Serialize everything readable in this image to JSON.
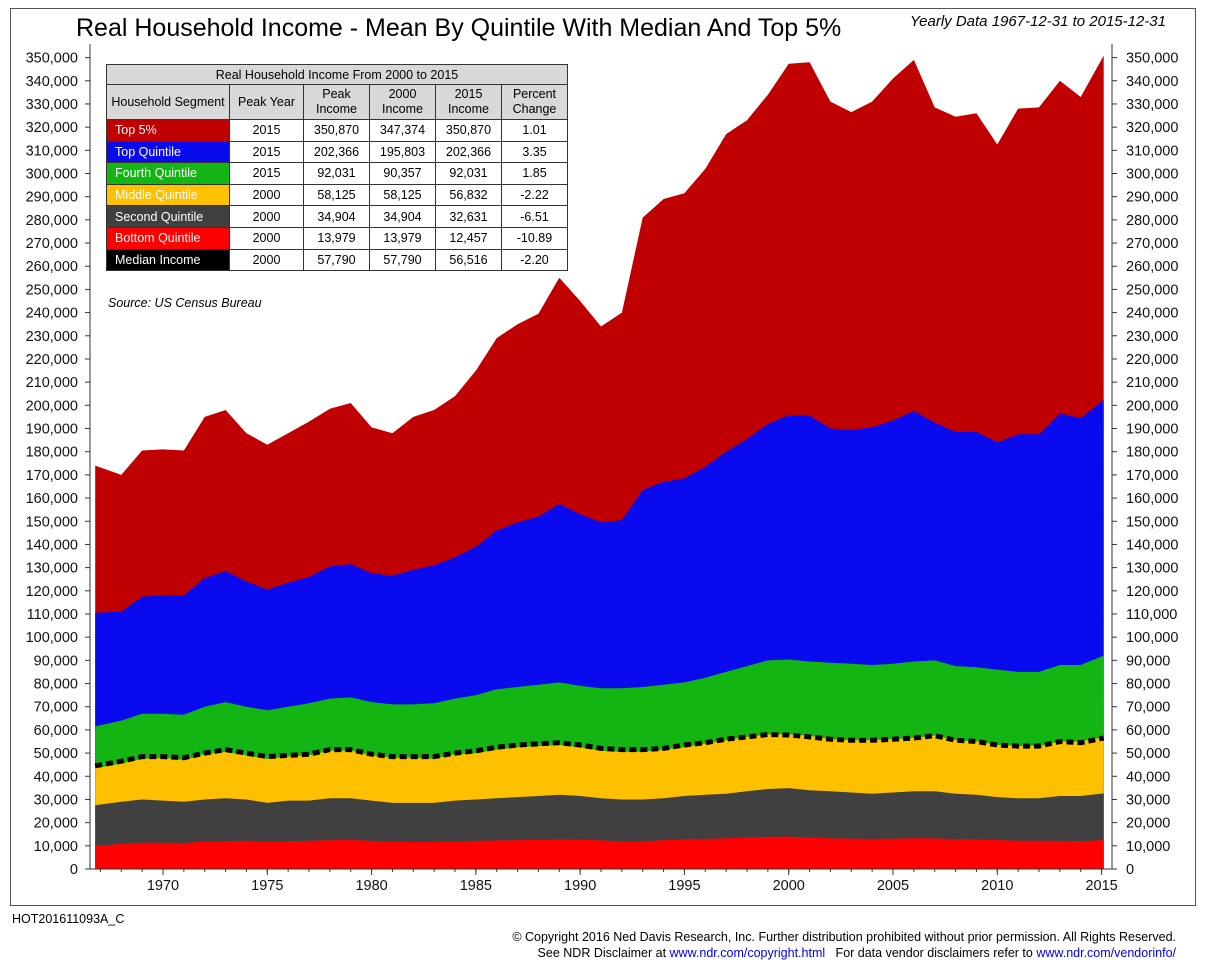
{
  "header": {
    "title": "Real Household Income - Mean By Quintile With Median And Top 5%",
    "subtitle": "Yearly Data 1967-12-31 to 2015-12-31"
  },
  "table": {
    "caption": "Real Household Income From 2000 to 2015",
    "headers": [
      "Household Segment",
      "Peak Year",
      "Peak Income",
      "2000 Income",
      "2015 Income",
      "Percent Change"
    ],
    "rows": [
      {
        "segment": "Top 5%",
        "color": "#c00000",
        "peak_year": "2015",
        "peak_income": "350,870",
        "income_2000": "347,374",
        "income_2015": "350,870",
        "pct_change": "1.01"
      },
      {
        "segment": "Top Quintile",
        "color": "#0a0aee",
        "peak_year": "2015",
        "peak_income": "202,366",
        "income_2000": "195,803",
        "income_2015": "202,366",
        "pct_change": "3.35"
      },
      {
        "segment": "Fourth Quintile",
        "color": "#12b512",
        "peak_year": "2015",
        "peak_income": "92,031",
        "income_2000": "90,357",
        "income_2015": "92,031",
        "pct_change": "1.85"
      },
      {
        "segment": "Middle Quintile",
        "color": "#ffc000",
        "peak_year": "2000",
        "peak_income": "58,125",
        "income_2000": "58,125",
        "income_2015": "56,832",
        "pct_change": "-2.22"
      },
      {
        "segment": "Second Quintile",
        "color": "#404040",
        "peak_year": "2000",
        "peak_income": "34,904",
        "income_2000": "34,904",
        "income_2015": "32,631",
        "pct_change": "-6.51"
      },
      {
        "segment": "Bottom Quintile",
        "color": "#ff0000",
        "peak_year": "2000",
        "peak_income": "13,979",
        "income_2000": "13,979",
        "income_2015": "12,457",
        "pct_change": "-10.89"
      },
      {
        "segment": "Median Income",
        "color": "#000000",
        "peak_year": "2000",
        "peak_income": "57,790",
        "income_2000": "57,790",
        "income_2015": "56,516",
        "pct_change": "-2.20"
      }
    ]
  },
  "source": "Source:  US Census Bureau",
  "footer": {
    "code": "HOT201611093A_C",
    "copyright_line1": "© Copyright 2016 Ned Davis Research, Inc. Further distribution prohibited without prior permission. All Rights Reserved.",
    "copyright_line2_a": "See NDR Disclaimer at ",
    "copyright_link1": "www.ndr.com/copyright.html",
    "copyright_line2_b": "   For data vendor disclaimers refer to ",
    "copyright_link2": "www.ndr.com/vendorinfo/"
  },
  "chart_data": {
    "type": "area",
    "x": [
      1967,
      1968,
      1969,
      1970,
      1971,
      1972,
      1973,
      1974,
      1975,
      1976,
      1977,
      1978,
      1979,
      1980,
      1981,
      1982,
      1983,
      1984,
      1985,
      1986,
      1987,
      1988,
      1989,
      1990,
      1991,
      1992,
      1993,
      1994,
      1995,
      1996,
      1997,
      1998,
      1999,
      2000,
      2001,
      2002,
      2003,
      2004,
      2005,
      2006,
      2007,
      2008,
      2009,
      2010,
      2011,
      2012,
      2013,
      2014,
      2015
    ],
    "xlim": [
      1966.5,
      2015.5
    ],
    "ylim": [
      0,
      355000
    ],
    "y_ticks": [
      0,
      10000,
      20000,
      30000,
      40000,
      50000,
      60000,
      70000,
      80000,
      90000,
      100000,
      110000,
      120000,
      130000,
      140000,
      150000,
      160000,
      170000,
      180000,
      190000,
      200000,
      210000,
      220000,
      230000,
      240000,
      250000,
      260000,
      270000,
      280000,
      290000,
      300000,
      310000,
      320000,
      330000,
      340000,
      350000
    ],
    "y_tick_labels": [
      "0",
      "10,000",
      "20,000",
      "30,000",
      "40,000",
      "50,000",
      "60,000",
      "70,000",
      "80,000",
      "90,000",
      "100,000",
      "110,000",
      "120,000",
      "130,000",
      "140,000",
      "150,000",
      "160,000",
      "170,000",
      "180,000",
      "190,000",
      "200,000",
      "210,000",
      "220,000",
      "230,000",
      "240,000",
      "250,000",
      "260,000",
      "270,000",
      "280,000",
      "290,000",
      "300,000",
      "310,000",
      "320,000",
      "330,000",
      "340,000",
      "350,000"
    ],
    "x_ticks": [
      1970,
      1975,
      1980,
      1985,
      1990,
      1995,
      2000,
      2005,
      2010,
      2015
    ],
    "x_tick_labels": [
      "1970",
      "1975",
      "1980",
      "1985",
      "1990",
      "1995",
      "2000",
      "2005",
      "2010",
      "2015"
    ],
    "series": [
      {
        "name": "Top 5%",
        "color": "#c00000",
        "values": [
          174000,
          170000,
          180500,
          181000,
          180500,
          195000,
          198000,
          188000,
          183000,
          188000,
          193000,
          198500,
          201000,
          190500,
          188000,
          195000,
          198000,
          204000,
          215000,
          229000,
          235000,
          239500,
          255000,
          245000,
          234000,
          240000,
          281000,
          289000,
          291500,
          302000,
          317000,
          323000,
          334000,
          347374,
          348000,
          331000,
          326500,
          331000,
          341000,
          349000,
          328500,
          324500,
          326000,
          312500,
          328000,
          328500,
          340000,
          333000,
          350870
        ]
      },
      {
        "name": "Top Quintile",
        "color": "#0a0aee",
        "values": [
          110500,
          111000,
          117500,
          118000,
          118000,
          125500,
          128500,
          124000,
          120500,
          123500,
          126000,
          130500,
          131500,
          127500,
          126500,
          129000,
          131000,
          134500,
          139000,
          146000,
          149500,
          152000,
          157500,
          153000,
          149500,
          150500,
          163500,
          167000,
          168500,
          173500,
          180000,
          185500,
          192000,
          195803,
          195500,
          190000,
          189500,
          190500,
          193500,
          197500,
          192500,
          188500,
          188500,
          184000,
          187500,
          187500,
          196500,
          194500,
          202366
        ]
      },
      {
        "name": "Fourth Quintile",
        "color": "#12b512",
        "values": [
          61500,
          64000,
          67000,
          67000,
          66500,
          70000,
          72000,
          70000,
          68500,
          70000,
          71500,
          73500,
          74000,
          72000,
          71000,
          71000,
          71500,
          73500,
          75000,
          77500,
          78500,
          79500,
          80500,
          79000,
          78000,
          78000,
          78500,
          79500,
          80500,
          82500,
          85000,
          87500,
          90000,
          90357,
          89500,
          89000,
          88500,
          88000,
          88500,
          89500,
          90000,
          87500,
          87000,
          86000,
          85000,
          85000,
          88000,
          88000,
          92031
        ]
      },
      {
        "name": "Middle Quintile",
        "color": "#ffc000",
        "values": [
          43500,
          45500,
          47500,
          48000,
          47000,
          49500,
          50500,
          49000,
          47500,
          48500,
          49000,
          51000,
          51000,
          49000,
          48000,
          48000,
          47500,
          49500,
          50000,
          51500,
          52500,
          53000,
          53500,
          52500,
          51000,
          50500,
          50500,
          51500,
          52500,
          54000,
          55500,
          57000,
          58000,
          58125,
          57500,
          56000,
          55500,
          55500,
          56000,
          56500,
          57500,
          55500,
          55000,
          53500,
          53000,
          53000,
          55000,
          55000,
          56832
        ]
      },
      {
        "name": "Second Quintile",
        "color": "#404040",
        "values": [
          27500,
          29000,
          30000,
          29500,
          29000,
          30000,
          30500,
          30000,
          28500,
          29500,
          29500,
          30500,
          30500,
          29500,
          28500,
          28500,
          28500,
          29500,
          30000,
          30500,
          31000,
          31500,
          32000,
          31500,
          30500,
          30000,
          30000,
          30500,
          31500,
          32000,
          32500,
          33500,
          34500,
          34904,
          34000,
          33500,
          33000,
          32500,
          33000,
          33500,
          33500,
          32500,
          32000,
          31000,
          30500,
          30500,
          31500,
          31500,
          32631
        ]
      },
      {
        "name": "Bottom Quintile",
        "color": "#ff0000",
        "values": [
          10000,
          10800,
          11300,
          11300,
          11200,
          11800,
          12000,
          12200,
          11800,
          12000,
          12100,
          12400,
          12500,
          12100,
          11700,
          11600,
          11600,
          11900,
          12100,
          12300,
          12400,
          12600,
          12800,
          12700,
          12300,
          12000,
          12000,
          12400,
          12900,
          13000,
          13200,
          13600,
          13900,
          13979,
          13600,
          13200,
          13100,
          13000,
          13100,
          13300,
          13200,
          12900,
          12800,
          12400,
          12200,
          12200,
          12100,
          12000,
          12457
        ]
      }
    ],
    "median": {
      "name": "Median Income",
      "color": "#000000",
      "values": [
        44500,
        46500,
        48500,
        48500,
        48000,
        50000,
        51500,
        50000,
        48500,
        49000,
        49500,
        51500,
        51500,
        49500,
        48500,
        48500,
        48500,
        50000,
        51000,
        52500,
        53500,
        54000,
        54500,
        53500,
        52000,
        51500,
        51500,
        52000,
        53500,
        54500,
        56000,
        57000,
        58000,
        57790,
        57000,
        56000,
        55500,
        55500,
        56000,
        56500,
        57500,
        55500,
        55000,
        53500,
        53000,
        53000,
        55000,
        54500,
        56516
      ]
    }
  }
}
